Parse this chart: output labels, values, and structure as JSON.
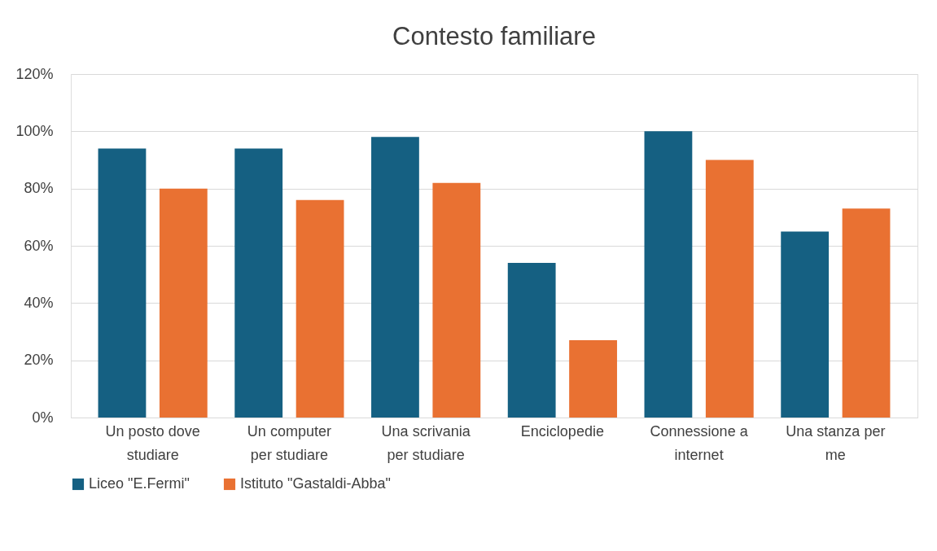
{
  "chart_data": {
    "type": "bar",
    "title": "Contesto familiare",
    "categories": [
      "Un posto dove studiare",
      "Un computer per studiare",
      "Una scrivania per studiare",
      "Enciclopedie",
      "Connessione a internet",
      "Una stanza per me"
    ],
    "series": [
      {
        "name": "Liceo \"E.Fermi\"",
        "color": "#156082",
        "values": [
          94,
          94,
          98,
          54,
          100,
          65
        ]
      },
      {
        "name": "Istituto \"Gastaldi-Abba\"",
        "color": "#e97132",
        "values": [
          80,
          76,
          82,
          27,
          90,
          73
        ]
      }
    ],
    "ylim": [
      0,
      120
    ],
    "yticks": [
      {
        "value": 0,
        "label": "0%"
      },
      {
        "value": 20,
        "label": "20%"
      },
      {
        "value": 40,
        "label": "40%"
      },
      {
        "value": 60,
        "label": "60%"
      },
      {
        "value": 80,
        "label": "80%"
      },
      {
        "value": 100,
        "label": "100%"
      },
      {
        "value": 120,
        "label": "120%"
      }
    ],
    "grid": "y",
    "legend": "bottom"
  }
}
